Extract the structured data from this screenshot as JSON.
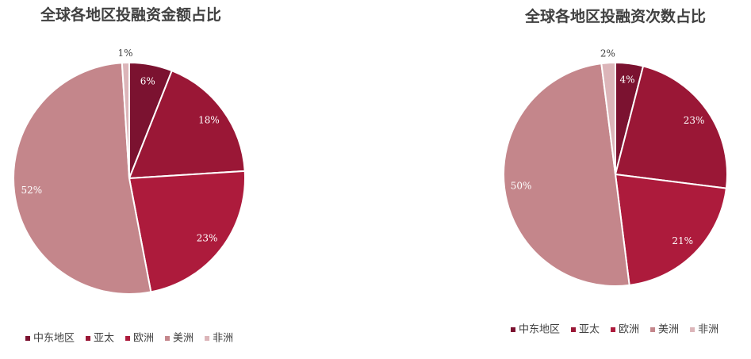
{
  "chart_data": [
    {
      "type": "pie",
      "title": "全球各地区投融资金额占比",
      "categories": [
        "中东地区",
        "亚太",
        "欧洲",
        "美洲",
        "非洲"
      ],
      "values": [
        6,
        18,
        23,
        52,
        1
      ],
      "value_labels": [
        "6%",
        "18%",
        "23%",
        "52%",
        "1%"
      ],
      "colors": [
        "#7b1230",
        "#9a1736",
        "#ad1b3c",
        "#c4868b",
        "#dcb5b9"
      ]
    },
    {
      "type": "pie",
      "title": "全球各地区投融资次数占比",
      "categories": [
        "中东地区",
        "亚太",
        "欧洲",
        "美洲",
        "非洲"
      ],
      "values": [
        4,
        23,
        21,
        50,
        2
      ],
      "value_labels": [
        "4%",
        "23%",
        "21%",
        "50%",
        "2%"
      ],
      "colors": [
        "#7b1230",
        "#9a1736",
        "#ad1b3c",
        "#c4868b",
        "#dcb5b9"
      ]
    }
  ]
}
